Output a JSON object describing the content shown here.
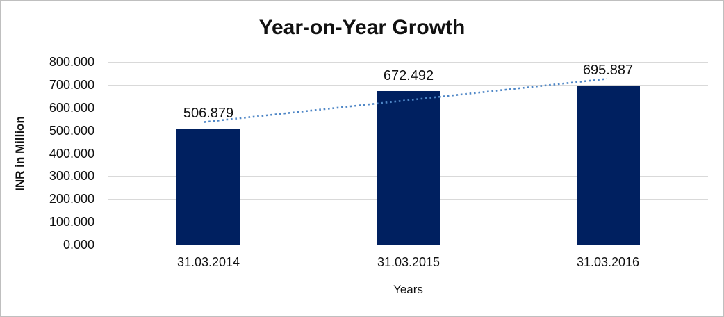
{
  "chart_data": {
    "type": "bar",
    "title": "Year-on-Year Growth",
    "categories": [
      "31.03.2014",
      "31.03.2015",
      "31.03.2016"
    ],
    "values": [
      506.879,
      672.492,
      695.887
    ],
    "value_labels": [
      "506.879",
      "672.492",
      "695.887"
    ],
    "xlabel": "Years",
    "ylabel": "INR in Million",
    "ylim": [
      0,
      800
    ],
    "ytick_values": [
      800,
      700,
      600,
      500,
      400,
      300,
      200,
      100,
      0
    ],
    "ytick_labels": [
      "800.000",
      "700.000",
      "600.000",
      "500.000",
      "400.000",
      "300.000",
      "200.000",
      "100.000",
      "0.000"
    ],
    "grid": true,
    "legend_position": "none",
    "trendline": {
      "type": "linear",
      "style": "dotted"
    },
    "colors": {
      "bar": "#002060",
      "trendline": "#4e86c6",
      "gridline": "#d9d9d9",
      "text": "#111111",
      "frame_border": "#bfbfbf",
      "background": "#ffffff"
    }
  }
}
